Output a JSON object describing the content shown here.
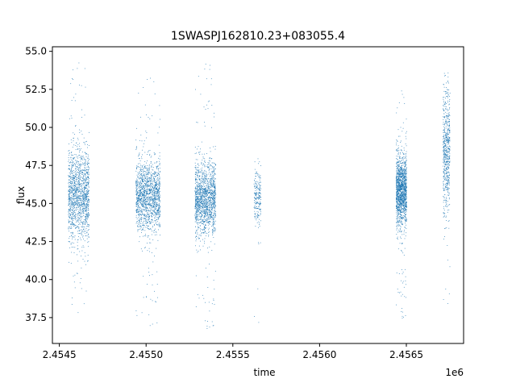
{
  "chart_data": {
    "type": "scatter",
    "title": "1SWASPJ162810.23+083055.4",
    "xlabel": "time",
    "ylabel": "flux",
    "x_offset_label": "1e6",
    "xlim": [
      2454460,
      2456830
    ],
    "ylim": [
      35.8,
      55.3
    ],
    "x_ticks": [
      2454500,
      2455000,
      2455500,
      2456000,
      2456500
    ],
    "x_tick_labels": [
      "2.4545",
      "2.4550",
      "2.4555",
      "2.4560",
      "2.4565"
    ],
    "y_ticks": [
      37.5,
      40.0,
      42.5,
      45.0,
      47.5,
      50.0,
      52.5,
      55.0
    ],
    "y_tick_labels": [
      "37.5",
      "40.0",
      "42.5",
      "45.0",
      "47.5",
      "50.0",
      "52.5",
      "55.0"
    ],
    "grid": false,
    "marker_color": "#1f77b4",
    "clusters": [
      {
        "x": [
          2454550,
          2454670
        ],
        "y_mean": 45.5,
        "y_sd": 1.5,
        "y_range": [
          37.8,
          54.3
        ],
        "n": 1400
      },
      {
        "x": [
          2454940,
          2455080
        ],
        "y_mean": 45.5,
        "y_sd": 1.1,
        "y_range": [
          36.8,
          53.7
        ],
        "n": 1500
      },
      {
        "x": [
          2455280,
          2455400
        ],
        "y_mean": 45.3,
        "y_sd": 1.2,
        "y_range": [
          36.6,
          54.4
        ],
        "n": 1500
      },
      {
        "x": [
          2455620,
          2455660
        ],
        "y_mean": 45.5,
        "y_sd": 0.9,
        "y_range": [
          37.0,
          48.7
        ],
        "n": 220
      },
      {
        "x": [
          2456440,
          2456500
        ],
        "y_mean": 45.8,
        "y_sd": 1.1,
        "y_range": [
          37.3,
          52.6
        ],
        "n": 1500
      },
      {
        "x": [
          2456710,
          2456750
        ],
        "y_mean": 48.5,
        "y_sd": 2.0,
        "y_range": [
          37.2,
          53.6
        ],
        "n": 600
      }
    ]
  }
}
